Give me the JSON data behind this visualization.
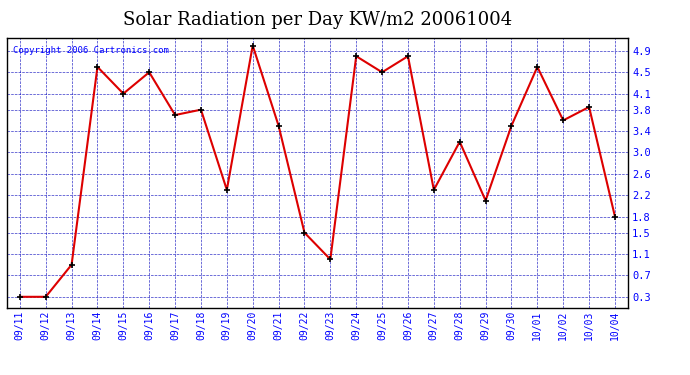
{
  "title": "Solar Radiation per Day KW/m2 20061004",
  "copyright": "Copyright 2006 Cartronics.com",
  "dates": [
    "09/11",
    "09/12",
    "09/13",
    "09/14",
    "09/15",
    "09/16",
    "09/17",
    "09/18",
    "09/19",
    "09/20",
    "09/21",
    "09/22",
    "09/23",
    "09/24",
    "09/25",
    "09/26",
    "09/27",
    "09/28",
    "09/29",
    "09/30",
    "10/01",
    "10/02",
    "10/03",
    "10/04"
  ],
  "values": [
    0.3,
    0.3,
    0.9,
    4.6,
    4.1,
    4.5,
    3.7,
    3.8,
    2.3,
    5.0,
    3.5,
    1.5,
    1.0,
    4.8,
    4.5,
    4.8,
    2.3,
    3.2,
    2.1,
    3.5,
    4.6,
    3.6,
    3.85,
    1.8
  ],
  "line_color": "#dd0000",
  "bg_color": "#ffffff",
  "plot_bg_color": "#ffffff",
  "grid_color": "#0000bb",
  "border_color": "#000000",
  "title_fontsize": 13,
  "ylabel_values": [
    0.3,
    0.7,
    1.1,
    1.5,
    1.8,
    2.2,
    2.6,
    3.0,
    3.4,
    3.8,
    4.1,
    4.5,
    4.9
  ],
  "ylim": [
    0.1,
    5.15
  ],
  "copyright_fontsize": 6.5,
  "tick_fontsize": 7,
  "ytick_fontsize": 7.5
}
